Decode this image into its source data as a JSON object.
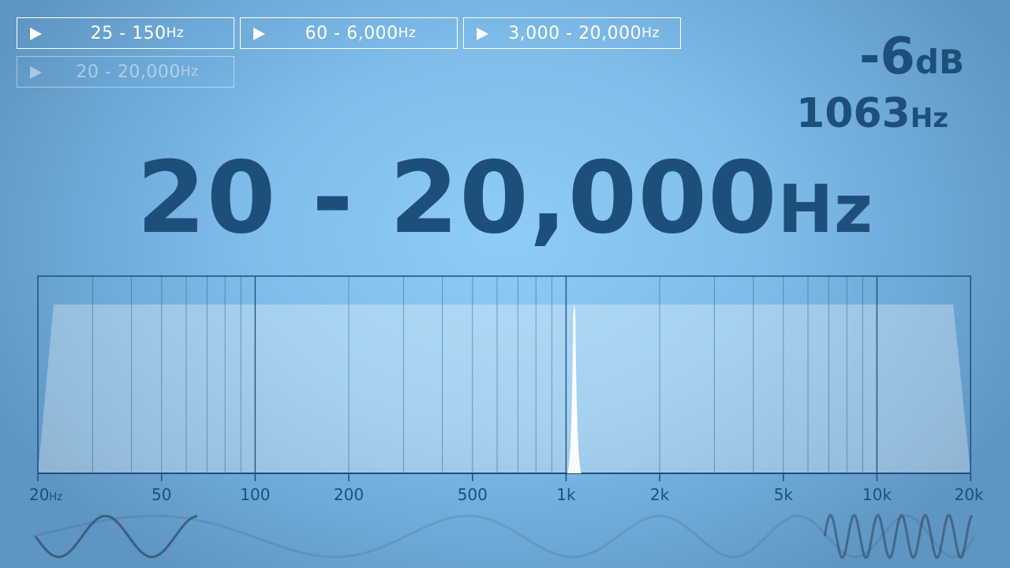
{
  "buttons": [
    {
      "from": "25",
      "to": "150",
      "unit": "Hz",
      "active": true
    },
    {
      "from": "60",
      "to": "6,000",
      "unit": "Hz",
      "active": true
    },
    {
      "from": "3,000",
      "to": "20,000",
      "unit": "Hz",
      "active": true
    },
    {
      "from": "20",
      "to": "20,000",
      "unit": "Hz",
      "active": false
    }
  ],
  "readout": {
    "level": "-6",
    "level_unit": "dB",
    "freq": "1063",
    "freq_unit": "Hz"
  },
  "range": {
    "from": "20",
    "sep": " - ",
    "to": "20,000",
    "unit": "Hz"
  },
  "chart_data": {
    "type": "area",
    "x_scale": "log",
    "xlim": [
      20,
      20000
    ],
    "tick_labels": [
      {
        "value": 20,
        "label": "20",
        "unit": "Hz"
      },
      {
        "value": 50,
        "label": "50"
      },
      {
        "value": 100,
        "label": "100"
      },
      {
        "value": 200,
        "label": "200"
      },
      {
        "value": 500,
        "label": "500"
      },
      {
        "value": 1000,
        "label": "1k"
      },
      {
        "value": 2000,
        "label": "2k"
      },
      {
        "value": 5000,
        "label": "5k"
      },
      {
        "value": 10000,
        "label": "10k"
      },
      {
        "value": 20000,
        "label": "20k"
      }
    ],
    "passband": {
      "low": 20,
      "high": 20000
    },
    "tone": {
      "frequency": 1063
    },
    "grid": true
  },
  "colors": {
    "accent": "#1d4f7a",
    "white": "#ffffff"
  }
}
